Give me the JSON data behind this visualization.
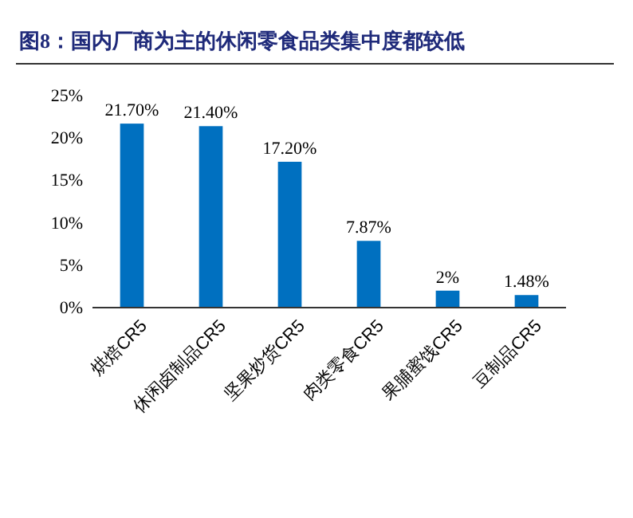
{
  "chart_data": {
    "type": "bar",
    "title": "图8：国内厂商为主的休闲零食品类集中度都较低",
    "categories": [
      "烘焙CR5",
      "休闲卤制品CR5",
      "坚果炒货CR5",
      "肉类零食CR5",
      "果脯蜜饯CR5",
      "豆制品CR5"
    ],
    "values": [
      21.7,
      21.4,
      17.2,
      7.87,
      2,
      1.48
    ],
    "value_labels": [
      "21.70%",
      "21.40%",
      "17.20%",
      "7.87%",
      "2%",
      "1.48%"
    ],
    "color": "#0070c0",
    "ylim": [
      0,
      25
    ],
    "yticks": [
      {
        "value": 0,
        "label": "0%"
      },
      {
        "value": 5,
        "label": "5%"
      },
      {
        "value": 10,
        "label": "10%"
      },
      {
        "value": 15,
        "label": "15%"
      },
      {
        "value": 20,
        "label": "20%"
      },
      {
        "value": 25,
        "label": "25%"
      }
    ],
    "grid": false
  }
}
